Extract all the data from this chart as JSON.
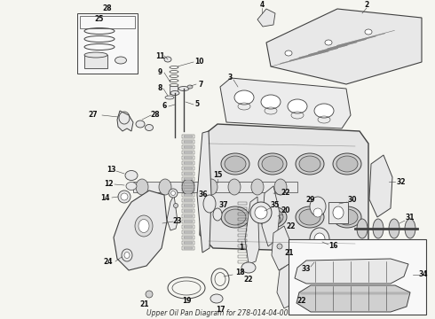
{
  "title": "Upper Oil Pan Diagram for 278-014-04-00",
  "bg_color": "#f5f5f0",
  "line_color": "#404040",
  "label_color": "#111111",
  "fig_width": 4.9,
  "fig_height": 3.6,
  "dpi": 100
}
